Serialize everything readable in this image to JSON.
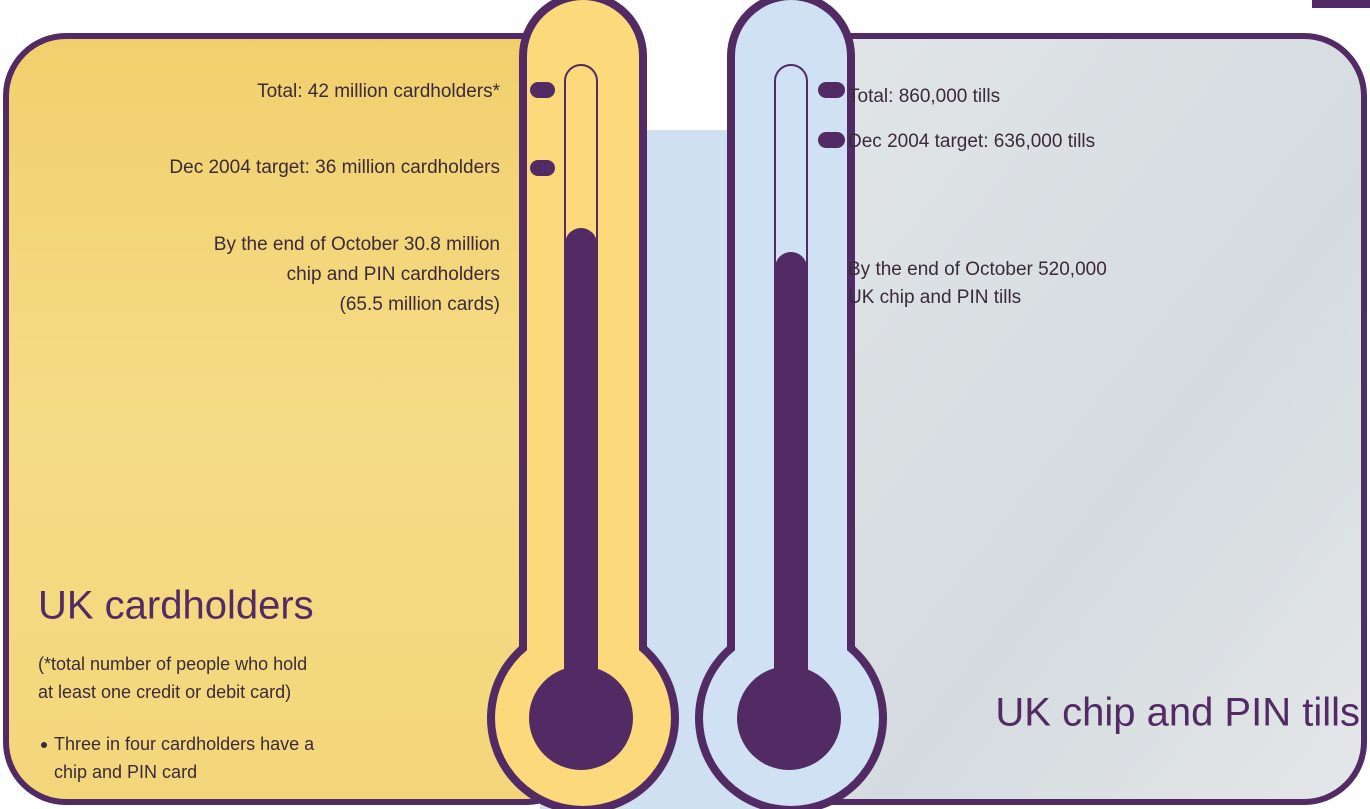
{
  "left": {
    "title": "UK cardholders",
    "total": "Total: 42 million cardholders*",
    "target": "Dec 2004 target: 36 million cardholders",
    "progress": [
      "By the end of October 30.8 million",
      "chip and PIN cardholders",
      "(65.5 million cards)"
    ],
    "note": [
      "(*total number of people who hold",
      "at least one credit or debit card)"
    ],
    "bullet": [
      "Three in four cardholders have a",
      "chip and PIN card"
    ]
  },
  "right": {
    "title": "UK chip and PIN tills",
    "total": "Total: 860,000 tills",
    "target": "Dec 2004 target: 636,000 tills",
    "progress": [
      "By the end of October 520,000",
      "UK chip and PIN tills"
    ]
  }
}
